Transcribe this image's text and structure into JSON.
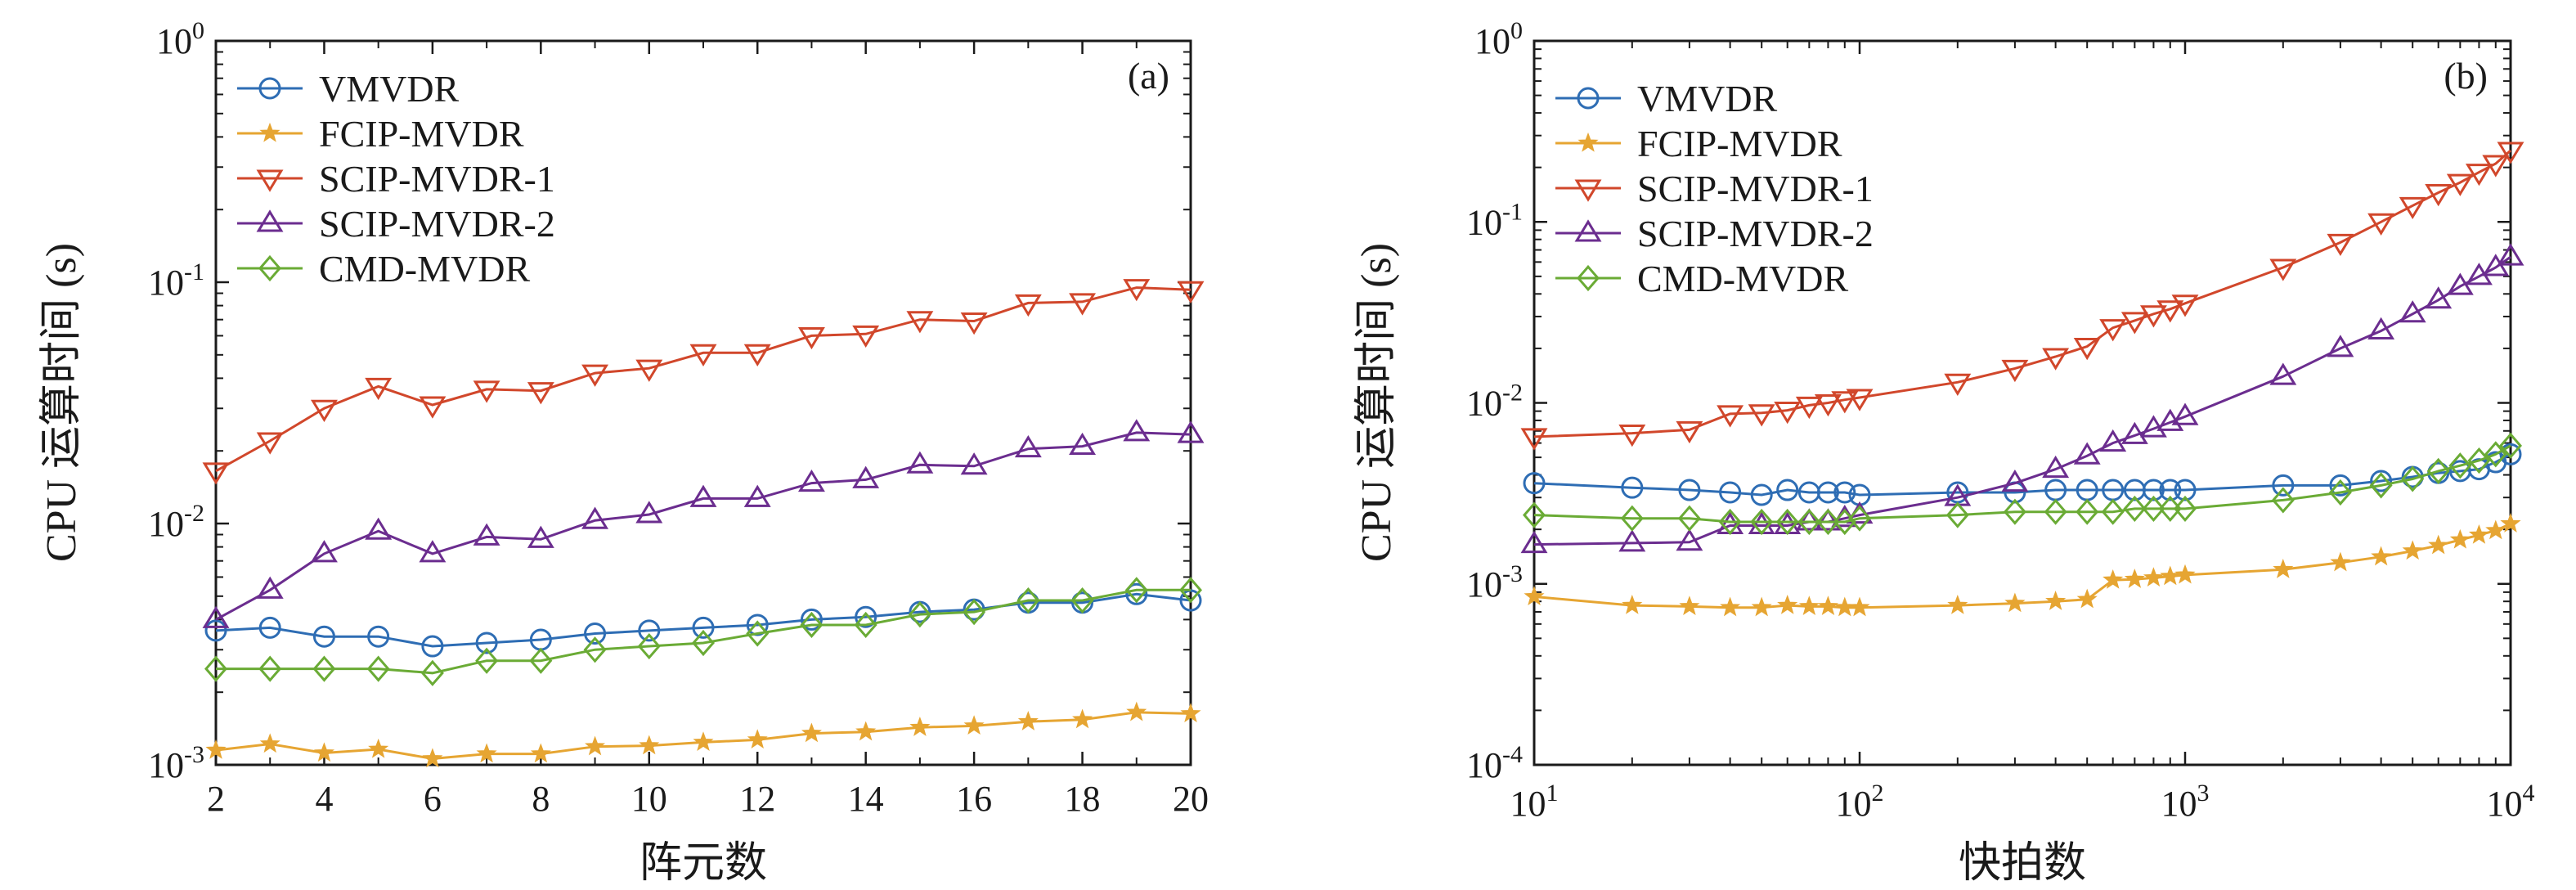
{
  "colors": {
    "VMVDR": "#2e6db4",
    "FCIP-MVDR": "#e6a532",
    "SCIP-MVDR-1": "#d1472b",
    "SCIP-MVDR-2": "#6b2d8f",
    "CMD-MVDR": "#6aab35",
    "axis": "#1a1a1a"
  },
  "markers": {
    "VMVDR": "circle",
    "FCIP-MVDR": "star",
    "SCIP-MVDR-1": "triangle-down",
    "SCIP-MVDR-2": "triangle-up",
    "CMD-MVDR": "diamond"
  },
  "chart_data": [
    {
      "type": "line",
      "panel_label": "(a)",
      "xlabel": "阵元数",
      "ylabel": "CPU 运算时间 (s)",
      "x_scale": "linear",
      "y_scale": "log",
      "xlim": [
        2,
        20
      ],
      "ylim": [
        0.001,
        1
      ],
      "x_ticks": [
        2,
        4,
        6,
        8,
        10,
        12,
        14,
        16,
        18,
        20
      ],
      "x_tick_labels": [
        "2",
        "4",
        "6",
        "8",
        "10",
        "12",
        "14",
        "16",
        "18",
        "20"
      ],
      "y_ticks": [
        {
          "base": "10",
          "exp": "-3"
        },
        {
          "base": "10",
          "exp": "-2"
        },
        {
          "base": "10",
          "exp": "-1"
        },
        {
          "base": "10",
          "exp": "0"
        }
      ],
      "legend_position": "top-left",
      "grid": false,
      "x": [
        2,
        3,
        4,
        5,
        6,
        7,
        8,
        9,
        10,
        11,
        12,
        13,
        14,
        15,
        16,
        17,
        18,
        19,
        20
      ],
      "series": [
        {
          "name": "VMVDR",
          "values": [
            0.0036,
            0.0037,
            0.0034,
            0.0034,
            0.0031,
            0.0032,
            0.0033,
            0.0035,
            0.0036,
            0.0037,
            0.0038,
            0.004,
            0.0041,
            0.0043,
            0.0044,
            0.0047,
            0.0047,
            0.0051,
            0.0048
          ]
        },
        {
          "name": "FCIP-MVDR",
          "values": [
            0.00115,
            0.00122,
            0.00112,
            0.00116,
            0.00106,
            0.00111,
            0.00111,
            0.00119,
            0.0012,
            0.00124,
            0.00127,
            0.00135,
            0.00137,
            0.00143,
            0.00145,
            0.00151,
            0.00154,
            0.00165,
            0.00163
          ]
        },
        {
          "name": "SCIP-MVDR-1",
          "values": [
            0.0165,
            0.022,
            0.03,
            0.037,
            0.031,
            0.036,
            0.0355,
            0.042,
            0.044,
            0.051,
            0.051,
            0.06,
            0.061,
            0.07,
            0.069,
            0.082,
            0.083,
            0.095,
            0.093
          ]
        },
        {
          "name": "SCIP-MVDR-2",
          "values": [
            0.004,
            0.0053,
            0.0075,
            0.0093,
            0.0075,
            0.0088,
            0.0086,
            0.0103,
            0.0109,
            0.0127,
            0.0127,
            0.0147,
            0.0152,
            0.0175,
            0.0173,
            0.0204,
            0.0209,
            0.0238,
            0.0234
          ]
        },
        {
          "name": "CMD-MVDR",
          "values": [
            0.0025,
            0.0025,
            0.0025,
            0.0025,
            0.0024,
            0.0027,
            0.0027,
            0.003,
            0.0031,
            0.0032,
            0.0035,
            0.0038,
            0.0038,
            0.0042,
            0.0043,
            0.0048,
            0.0048,
            0.0053,
            0.0053
          ]
        }
      ]
    },
    {
      "type": "line",
      "panel_label": "(b)",
      "xlabel": "快拍数",
      "ylabel": "CPU 运算时间 (s)",
      "x_scale": "log",
      "y_scale": "log",
      "xlim": [
        10,
        10000
      ],
      "ylim": [
        0.0001,
        1
      ],
      "x_ticks": [
        {
          "base": "10",
          "exp": "1"
        },
        {
          "base": "10",
          "exp": "2"
        },
        {
          "base": "10",
          "exp": "3"
        },
        {
          "base": "10",
          "exp": "4"
        }
      ],
      "y_ticks": [
        {
          "base": "10",
          "exp": "-4"
        },
        {
          "base": "10",
          "exp": "-3"
        },
        {
          "base": "10",
          "exp": "-2"
        },
        {
          "base": "10",
          "exp": "-1"
        },
        {
          "base": "10",
          "exp": "0"
        }
      ],
      "legend_position": "top-left",
      "grid": false,
      "x": [
        10,
        20,
        30,
        40,
        50,
        60,
        70,
        80,
        90,
        100,
        200,
        300,
        400,
        500,
        600,
        700,
        800,
        900,
        1000,
        2000,
        3000,
        4000,
        5000,
        6000,
        7000,
        8000,
        9000,
        10000
      ],
      "series": [
        {
          "name": "VMVDR",
          "values": [
            0.0036,
            0.0034,
            0.0033,
            0.0032,
            0.0031,
            0.0033,
            0.0032,
            0.0032,
            0.0032,
            0.0031,
            0.0032,
            0.0032,
            0.0033,
            0.0033,
            0.0033,
            0.0033,
            0.0033,
            0.0033,
            0.0033,
            0.0035,
            0.0035,
            0.0037,
            0.0039,
            0.0041,
            0.0042,
            0.0043,
            0.0047,
            0.0052
          ]
        },
        {
          "name": "FCIP-MVDR",
          "values": [
            0.00085,
            0.00076,
            0.00075,
            0.00074,
            0.00074,
            0.00076,
            0.00075,
            0.00075,
            0.00074,
            0.00074,
            0.00076,
            0.00078,
            0.0008,
            0.00082,
            0.00105,
            0.00106,
            0.00108,
            0.0011,
            0.00112,
            0.0012,
            0.00131,
            0.00141,
            0.00152,
            0.00163,
            0.00175,
            0.00186,
            0.00197,
            0.00215
          ]
        },
        {
          "name": "SCIP-MVDR-1",
          "values": [
            0.0065,
            0.0068,
            0.0071,
            0.0087,
            0.0088,
            0.0091,
            0.0097,
            0.01,
            0.0104,
            0.0107,
            0.013,
            0.0155,
            0.018,
            0.0205,
            0.026,
            0.0285,
            0.031,
            0.033,
            0.0355,
            0.056,
            0.077,
            0.1,
            0.123,
            0.145,
            0.165,
            0.188,
            0.21,
            0.248
          ]
        },
        {
          "name": "SCIP-MVDR-2",
          "values": [
            0.00165,
            0.00168,
            0.0017,
            0.0021,
            0.0021,
            0.0021,
            0.0022,
            0.0022,
            0.0023,
            0.0024,
            0.003,
            0.0036,
            0.0043,
            0.0051,
            0.006,
            0.0066,
            0.0072,
            0.0078,
            0.0084,
            0.014,
            0.02,
            0.025,
            0.031,
            0.037,
            0.044,
            0.05,
            0.056,
            0.064
          ]
        },
        {
          "name": "CMD-MVDR",
          "values": [
            0.0024,
            0.0023,
            0.0023,
            0.0022,
            0.0022,
            0.0022,
            0.0022,
            0.0022,
            0.0022,
            0.0023,
            0.0024,
            0.0025,
            0.0025,
            0.0025,
            0.0025,
            0.0026,
            0.0026,
            0.0026,
            0.0026,
            0.0029,
            0.0032,
            0.0035,
            0.0038,
            0.0042,
            0.0045,
            0.0048,
            0.0052,
            0.0058
          ]
        }
      ]
    }
  ]
}
